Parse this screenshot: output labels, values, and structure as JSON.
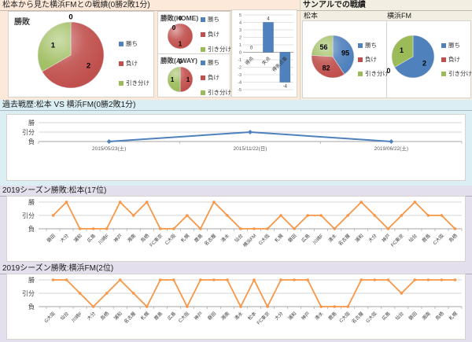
{
  "colors": {
    "win": "#4F81BD",
    "lose": "#C0504D",
    "draw": "#9BBB59",
    "orange_line": "#F79646",
    "blue_line": "#4F81BD",
    "band_top": "#FDE9D9",
    "band_top_right": "#F2EFE2",
    "band_history": "#DAEEF3",
    "band_season": "#E4DFEC"
  },
  "legend": {
    "win": "勝ち",
    "lose": "負け",
    "draw": "引き分け"
  },
  "result_axis": {
    "win": "勝",
    "draw": "引分",
    "lose": "負"
  },
  "titles": {
    "head_to_head": "松本から見た横浜FMとの戦績(0勝2敗1分)",
    "stadium": "サンアルでの戦績",
    "stadium_team_a": "松本",
    "stadium_team_b": "横浜FM",
    "history": "過去戦歴:松本 VS 横浜FM(0勝2敗1分)",
    "season_matsumoto": "2019シーズン勝敗:松本(17位)",
    "season_yokohama": "2019シーズン勝敗:横浜FM(2位)"
  },
  "chart_data": [
    {
      "id": "overall",
      "type": "pie",
      "title": "勝敗",
      "labels": [
        "勝ち",
        "負け",
        "引き分け"
      ],
      "values": [
        0,
        2,
        1
      ]
    },
    {
      "id": "home",
      "type": "pie",
      "title": "勝敗(HOME)",
      "labels": [
        "勝ち",
        "負け",
        "引き分け"
      ],
      "values": [
        0,
        1,
        0
      ]
    },
    {
      "id": "away",
      "type": "pie",
      "title": "勝敗(AWAY)",
      "labels": [
        "勝ち",
        "負け",
        "引き分け"
      ],
      "values": [
        0,
        1,
        1
      ]
    },
    {
      "id": "goals",
      "type": "bar",
      "categories": [
        "得点",
        "失点",
        "得失点差"
      ],
      "values": [
        0,
        4,
        -4
      ],
      "ylim": [
        -5,
        5
      ],
      "grid": true
    },
    {
      "id": "stadium_matsumoto",
      "type": "pie",
      "title": "松本",
      "labels": [
        "勝ち",
        "負け",
        "引き分け"
      ],
      "values": [
        95,
        82,
        56
      ]
    },
    {
      "id": "stadium_yokohama",
      "type": "pie",
      "title": "横浜FM",
      "labels": [
        "勝ち",
        "負け",
        "引き分け"
      ],
      "values": [
        2,
        0,
        1
      ]
    },
    {
      "id": "history",
      "type": "line",
      "title": "過去戦歴:松本 VS 横浜FM(0勝2敗1分)",
      "y_categories": [
        "負",
        "引分",
        "勝"
      ],
      "x": [
        "2015/05/23(土)",
        "2015/11/22(日)",
        "2019/06/22(土)"
      ],
      "values": [
        "負",
        "引分",
        "負"
      ]
    },
    {
      "id": "season_matsumoto",
      "type": "line",
      "title": "2019シーズン勝敗:松本(17位)",
      "y_categories": [
        "負",
        "引分",
        "勝"
      ],
      "x": [
        "磐田",
        "大分",
        "浦和",
        "広島",
        "川崎F",
        "神戸",
        "湘南",
        "鳥栖",
        "FC東京",
        "C大阪",
        "札幌",
        "鹿島",
        "名古屋",
        "清水",
        "仙台",
        "横浜FM",
        "G大阪",
        "札幌",
        "磐田",
        "広島",
        "川崎F",
        "清水",
        "名古屋",
        "浦和",
        "大分",
        "神戸",
        "FC東京",
        "仙台",
        "鹿島",
        "C大阪",
        "鳥栖"
      ],
      "values": [
        "引分",
        "勝",
        "負",
        "負",
        "負",
        "勝",
        "引分",
        "勝",
        "負",
        "負",
        "引分",
        "負",
        "勝",
        "引分",
        "負",
        "負",
        "負",
        "引分",
        "負",
        "引分",
        "引分",
        "負",
        "引分",
        "勝",
        "引分",
        "負",
        "引分",
        "勝",
        "引分",
        "引分",
        "負"
      ]
    },
    {
      "id": "season_yokohama",
      "type": "line",
      "title": "2019シーズン勝敗:横浜FM(2位)",
      "y_categories": [
        "負",
        "引分",
        "勝"
      ],
      "x": [
        "G大阪",
        "仙台",
        "川崎F",
        "大分",
        "鳥栖",
        "浦和",
        "名古屋",
        "札幌",
        "鹿島",
        "広島",
        "C大阪",
        "神戸",
        "磐田",
        "湘南",
        "清水",
        "松本",
        "FC東京",
        "大分",
        "浦和",
        "神戸",
        "清水",
        "鹿島",
        "C大阪",
        "名古屋",
        "G大阪",
        "広島",
        "仙台",
        "磐田",
        "湘南",
        "鳥栖",
        "札幌"
      ],
      "values": [
        "勝",
        "勝",
        "引分",
        "負",
        "引分",
        "勝",
        "引分",
        "負",
        "勝",
        "勝",
        "負",
        "勝",
        "勝",
        "勝",
        "負",
        "勝",
        "負",
        "勝",
        "勝",
        "勝",
        "負",
        "負",
        "負",
        "勝",
        "勝",
        "勝",
        "引分",
        "勝",
        "勝",
        "勝",
        "勝"
      ]
    }
  ]
}
